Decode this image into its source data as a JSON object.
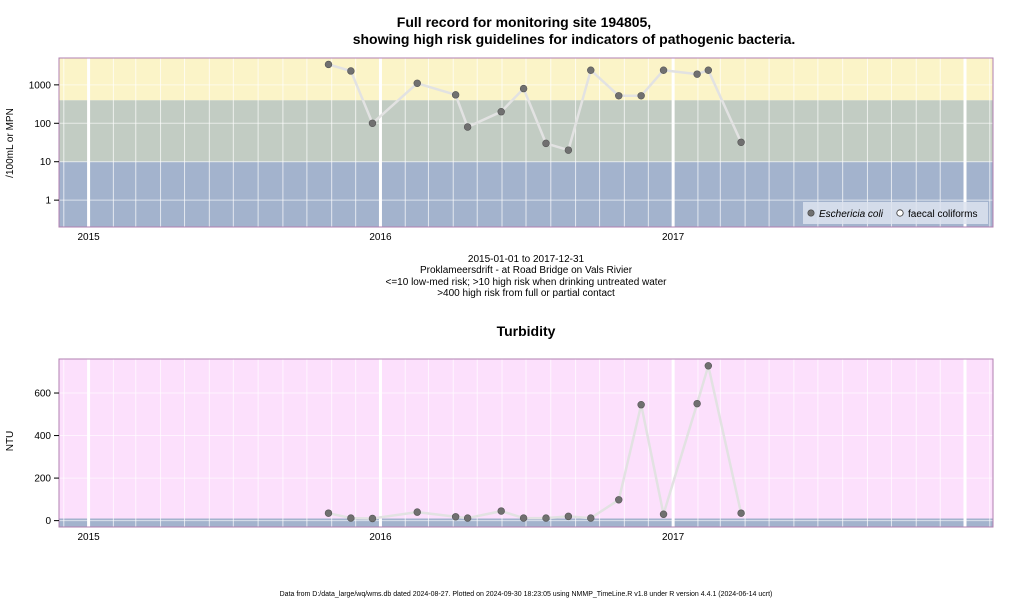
{
  "page": {
    "title_line1": "Full record for monitoring site 194805,",
    "title_line2": "showing high risk guidelines for indicators of pathogenic bacteria.",
    "subtitle_lines": [
      "2015-01-01 to 2017-12-31",
      "Proklameersdrift - at Road Bridge on Vals Rivier",
      "<=10 low-med risk; >10 high risk when drinking untreated water",
      ">400 high risk from full or partial contact"
    ],
    "turbidity_title": "Turbidity",
    "footer": "Data from D:/data_large/wq/wms.db dated 2024-08-27. Plotted on 2024-09-30 18:23:05 using NMMP_TimeLine.R v1.8 under R version 4.4.1 (2024-06-14 ucrt)"
  },
  "colors": {
    "band_low": "#a3b3cd",
    "band_mid": "#c2ccc3",
    "band_high": "#fbf4c8",
    "turbidity_bg": "#fce0fc",
    "turbidity_base": "#a3b3cd",
    "line": "#e2e2e2",
    "point": "#707070",
    "grid_major": "#ffffff",
    "grid_minor": "#ffffff"
  },
  "chart_data": [
    {
      "type": "scatter",
      "name": "bacteria",
      "ylabel": "/100mL or MPN",
      "y_scale": "log10",
      "ylim": [
        0.2,
        5000
      ],
      "y_ticks": [
        {
          "value": 1,
          "label": "1"
        },
        {
          "value": 10,
          "label": "10"
        },
        {
          "value": 100,
          "label": "100"
        },
        {
          "value": 1000,
          "label": "1000"
        }
      ],
      "xlim": [
        "2014-11-25",
        "2018-02-05"
      ],
      "x_ticks": [
        {
          "value": "2015-01-01",
          "label": "2015"
        },
        {
          "value": "2016-01-01",
          "label": "2016"
        },
        {
          "value": "2017-01-01",
          "label": "2017"
        },
        {
          "value": "2018-01-01",
          "label": ""
        }
      ],
      "bands": [
        {
          "from": 0.2,
          "to": 10
        },
        {
          "from": 10,
          "to": 400
        },
        {
          "from": 400,
          "to": 5000
        }
      ],
      "legend": {
        "position": "bottom-right",
        "entries": [
          {
            "label": "Eschericia coli",
            "symbol": "filled",
            "italic": true
          },
          {
            "label": "faecal coliforms",
            "symbol": "open",
            "italic": false
          }
        ]
      },
      "series": [
        {
          "name": "Eschericia coli",
          "points": [
            [
              "2015-10-28",
              3400
            ],
            [
              "2015-11-25",
              2300
            ],
            [
              "2015-12-22",
              100
            ],
            [
              "2016-02-16",
              1100
            ],
            [
              "2016-04-04",
              550
            ],
            [
              "2016-04-19",
              80
            ],
            [
              "2016-05-31",
              200
            ],
            [
              "2016-06-28",
              800
            ],
            [
              "2016-07-26",
              30
            ],
            [
              "2016-08-23",
              20
            ],
            [
              "2016-09-20",
              2400
            ],
            [
              "2016-10-25",
              520
            ],
            [
              "2016-11-22",
              520
            ],
            [
              "2016-12-20",
              2400
            ],
            [
              "2017-01-31",
              1900
            ],
            [
              "2017-02-14",
              2400
            ],
            [
              "2017-03-27",
              32
            ]
          ]
        }
      ]
    },
    {
      "type": "scatter",
      "name": "turbidity",
      "title": "Turbidity",
      "ylabel": "NTU",
      "ylim": [
        -30,
        760
      ],
      "y_ticks": [
        {
          "value": 0,
          "label": "0"
        },
        {
          "value": 200,
          "label": "200"
        },
        {
          "value": 400,
          "label": "400"
        },
        {
          "value": 600,
          "label": "600"
        }
      ],
      "xlim": [
        "2014-11-25",
        "2018-02-05"
      ],
      "x_ticks": [
        {
          "value": "2015-01-01",
          "label": "2015"
        },
        {
          "value": "2016-01-01",
          "label": "2016"
        },
        {
          "value": "2017-01-01",
          "label": "2017"
        },
        {
          "value": "2018-01-01",
          "label": ""
        }
      ],
      "base_band": [
        -30,
        10
      ],
      "series": [
        {
          "name": "Turbidity",
          "points": [
            [
              "2015-10-28",
              35
            ],
            [
              "2015-11-25",
              12
            ],
            [
              "2015-12-22",
              10
            ],
            [
              "2016-02-16",
              40
            ],
            [
              "2016-04-04",
              18
            ],
            [
              "2016-04-19",
              12
            ],
            [
              "2016-05-31",
              45
            ],
            [
              "2016-06-28",
              12
            ],
            [
              "2016-07-26",
              12
            ],
            [
              "2016-08-23",
              20
            ],
            [
              "2016-09-20",
              12
            ],
            [
              "2016-10-25",
              98
            ],
            [
              "2016-11-22",
              545
            ],
            [
              "2016-12-20",
              30
            ],
            [
              "2017-01-31",
              550
            ],
            [
              "2017-02-14",
              728
            ],
            [
              "2017-03-27",
              35
            ]
          ]
        }
      ]
    }
  ]
}
